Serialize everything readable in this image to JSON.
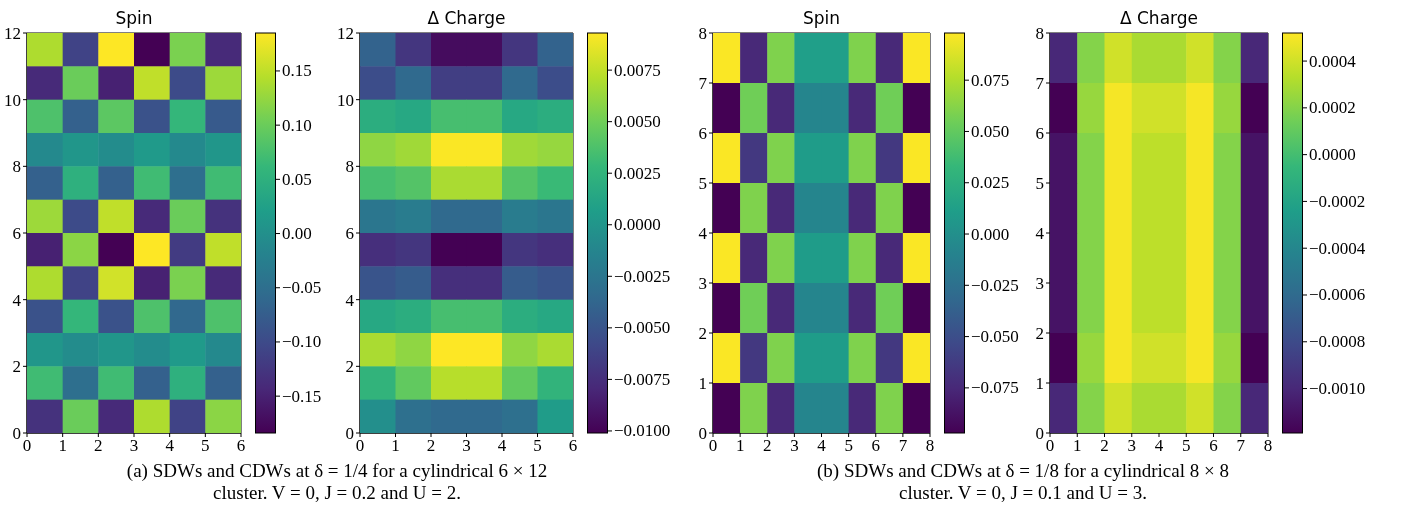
{
  "chart_data": [
    {
      "type": "heatmap",
      "title": "Spin",
      "xlim": [
        0,
        6
      ],
      "ylim": [
        0,
        12
      ],
      "xticks": [
        0,
        1,
        2,
        3,
        4,
        5,
        6
      ],
      "yticks": [
        0,
        2,
        4,
        6,
        8,
        10,
        12
      ],
      "clim": [
        -0.184,
        0.185
      ],
      "cticks": [
        {
          "value": -0.15,
          "label": "−0.15"
        },
        {
          "value": -0.1,
          "label": "−0.10"
        },
        {
          "value": -0.05,
          "label": "−0.05"
        },
        {
          "value": 0,
          "label": "0.00"
        },
        {
          "value": 0.05,
          "label": "0.05"
        },
        {
          "value": 0.1,
          "label": "0.10"
        },
        {
          "value": 0.15,
          "label": "0.15"
        }
      ],
      "cells": [
        [
          0.14,
          -0.11,
          0.185,
          -0.184,
          0.11,
          -0.14
        ],
        [
          -0.14,
          0.1,
          -0.15,
          0.15,
          -0.1,
          0.13
        ],
        [
          0.08,
          -0.07,
          0.09,
          -0.09,
          0.06,
          -0.08
        ],
        [
          -0.01,
          0.01,
          -0.005,
          0.015,
          -0.01,
          0.01
        ],
        [
          -0.07,
          0.05,
          -0.07,
          0.07,
          -0.05,
          0.07
        ],
        [
          0.13,
          -0.1,
          0.15,
          -0.14,
          0.1,
          -0.13
        ],
        [
          -0.15,
          0.12,
          -0.184,
          0.185,
          -0.12,
          0.15
        ],
        [
          0.14,
          -0.11,
          0.16,
          -0.15,
          0.11,
          -0.14
        ],
        [
          -0.09,
          0.06,
          -0.09,
          0.08,
          -0.06,
          0.08
        ],
        [
          0.01,
          -0.005,
          0.01,
          -0.005,
          0.015,
          -0.01
        ],
        [
          0.07,
          -0.05,
          0.07,
          -0.07,
          0.05,
          -0.07
        ],
        [
          -0.13,
          0.1,
          -0.14,
          0.14,
          -0.11,
          0.12
        ]
      ],
      "annotations": [
        "(a) SDWs and CDWs at δ = 1/4 for a cylindrical 6 × 12 cluster. V = 0, J = 0.2 and U = 2."
      ]
    },
    {
      "type": "heatmap",
      "title": "Δ Charge",
      "xlim": [
        0,
        6
      ],
      "ylim": [
        0,
        12
      ],
      "xticks": [
        0,
        1,
        2,
        3,
        4,
        5,
        6
      ],
      "yticks": [
        0,
        2,
        4,
        6,
        8,
        10,
        12
      ],
      "clim": [
        -0.0101,
        0.0093
      ],
      "cticks": [
        {
          "value": -0.01,
          "label": "−0.0100"
        },
        {
          "value": -0.0075,
          "label": "−0.0075"
        },
        {
          "value": -0.005,
          "label": "−0.0050"
        },
        {
          "value": -0.0025,
          "label": "−0.0025"
        },
        {
          "value": 0,
          "label": "0.0000"
        },
        {
          "value": 0.0025,
          "label": "0.0025"
        },
        {
          "value": 0.005,
          "label": "0.0050"
        },
        {
          "value": 0.0075,
          "label": "0.0075"
        }
      ],
      "cells": [
        [
          -0.004,
          -0.007,
          -0.0095,
          -0.0095,
          -0.007,
          -0.004
        ],
        [
          -0.0055,
          -0.0035,
          -0.0065,
          -0.0065,
          -0.0035,
          -0.0055
        ],
        [
          0.002,
          0.0015,
          0.0035,
          0.0035,
          0.0015,
          0.002
        ],
        [
          0.006,
          0.0065,
          0.0092,
          0.0092,
          0.0065,
          0.0062
        ],
        [
          0.0035,
          0.004,
          0.0068,
          0.0068,
          0.004,
          0.003
        ],
        [
          -0.0025,
          -0.002,
          -0.0035,
          -0.0035,
          -0.002,
          -0.0025
        ],
        [
          -0.0075,
          -0.007,
          -0.0101,
          -0.0101,
          -0.007,
          -0.0075
        ],
        [
          -0.005,
          -0.0045,
          -0.0075,
          -0.0075,
          -0.0045,
          -0.005
        ],
        [
          0.0015,
          0.002,
          0.0035,
          0.0035,
          0.002,
          0.0015
        ],
        [
          0.0068,
          0.006,
          0.0093,
          0.0093,
          0.006,
          0.0068
        ],
        [
          0.0025,
          0.0045,
          0.0072,
          0.0072,
          0.0045,
          0.0025
        ],
        [
          -0.0005,
          -0.003,
          -0.0035,
          -0.0035,
          -0.003,
          0.0005
        ]
      ]
    },
    {
      "type": "heatmap",
      "title": "Spin",
      "xlim": [
        0,
        8
      ],
      "ylim": [
        0,
        8
      ],
      "xticks": [
        0,
        1,
        2,
        3,
        4,
        5,
        6,
        7,
        8
      ],
      "yticks": [
        0,
        1,
        2,
        3,
        4,
        5,
        6,
        7,
        8
      ],
      "clim": [
        -0.097,
        0.098
      ],
      "cticks": [
        {
          "value": -0.075,
          "label": "−0.075"
        },
        {
          "value": -0.05,
          "label": "−0.050"
        },
        {
          "value": -0.025,
          "label": "−0.025"
        },
        {
          "value": 0,
          "label": "0.000"
        },
        {
          "value": 0.025,
          "label": "0.025"
        },
        {
          "value": 0.05,
          "label": "0.050"
        },
        {
          "value": 0.075,
          "label": "0.075"
        }
      ],
      "cells": [
        [
          0.097,
          -0.075,
          0.06,
          0.012,
          0.012,
          0.06,
          -0.075,
          0.097
        ],
        [
          -0.097,
          0.055,
          -0.075,
          -0.008,
          -0.008,
          -0.075,
          0.055,
          -0.097
        ],
        [
          0.097,
          -0.065,
          0.06,
          0.01,
          0.01,
          0.06,
          -0.065,
          0.097
        ],
        [
          -0.097,
          0.06,
          -0.075,
          -0.008,
          -0.008,
          -0.075,
          0.06,
          -0.097
        ],
        [
          0.097,
          -0.075,
          0.06,
          0.01,
          0.01,
          0.06,
          -0.075,
          0.097
        ],
        [
          -0.097,
          0.055,
          -0.075,
          -0.008,
          -0.008,
          -0.075,
          0.055,
          -0.097
        ],
        [
          0.097,
          -0.065,
          0.06,
          0.01,
          0.01,
          0.06,
          -0.065,
          0.097
        ],
        [
          -0.097,
          0.06,
          -0.075,
          -0.008,
          -0.008,
          -0.075,
          0.06,
          -0.097
        ]
      ],
      "annotations": [
        "(b) SDWs and CDWs at δ = 1/8 for a cylindrical 8 × 8 cluster. V = 0, J = 0.1 and U = 3."
      ]
    },
    {
      "type": "heatmap",
      "title": "Δ Charge",
      "xlim": [
        0,
        8
      ],
      "ylim": [
        0,
        8
      ],
      "xticks": [
        0,
        1,
        2,
        3,
        4,
        5,
        6,
        7,
        8
      ],
      "yticks": [
        0,
        1,
        2,
        3,
        4,
        5,
        6,
        7,
        8
      ],
      "clim": [
        -0.00119,
        0.00052
      ],
      "cticks": [
        {
          "value": -0.001,
          "label": "−0.0010"
        },
        {
          "value": -0.0008,
          "label": "−0.0008"
        },
        {
          "value": -0.0006,
          "label": "−0.0006"
        },
        {
          "value": -0.0004,
          "label": "−0.0004"
        },
        {
          "value": -0.0002,
          "label": "−0.0002"
        },
        {
          "value": 0,
          "label": "0.0000"
        },
        {
          "value": 0.0002,
          "label": "0.0002"
        },
        {
          "value": 0.0004,
          "label": "0.0004"
        }
      ],
      "cells": [
        [
          -0.001,
          0.0002,
          0.0004,
          0.0003,
          0.0003,
          0.0004,
          0.0002,
          -0.001
        ],
        [
          -0.00119,
          0.00025,
          0.0005,
          0.0004,
          0.0004,
          0.0005,
          0.00025,
          -0.00119
        ],
        [
          -0.0011,
          0.0002,
          0.0005,
          0.00035,
          0.00035,
          0.0005,
          0.0002,
          -0.0011
        ],
        [
          -0.0011,
          0.0002,
          0.0005,
          0.00035,
          0.00035,
          0.0005,
          0.0002,
          -0.0011
        ],
        [
          -0.0011,
          0.0002,
          0.0005,
          0.00035,
          0.00035,
          0.0005,
          0.0002,
          -0.0011
        ],
        [
          -0.0011,
          0.0002,
          0.0005,
          0.00035,
          0.00035,
          0.0005,
          0.0002,
          -0.0011
        ],
        [
          -0.00119,
          0.00025,
          0.0005,
          0.0004,
          0.0004,
          0.0005,
          0.00025,
          -0.00119
        ],
        [
          -0.001,
          0.0002,
          0.0004,
          0.0003,
          0.0003,
          0.0004,
          0.0002,
          -0.001
        ]
      ]
    }
  ]
}
